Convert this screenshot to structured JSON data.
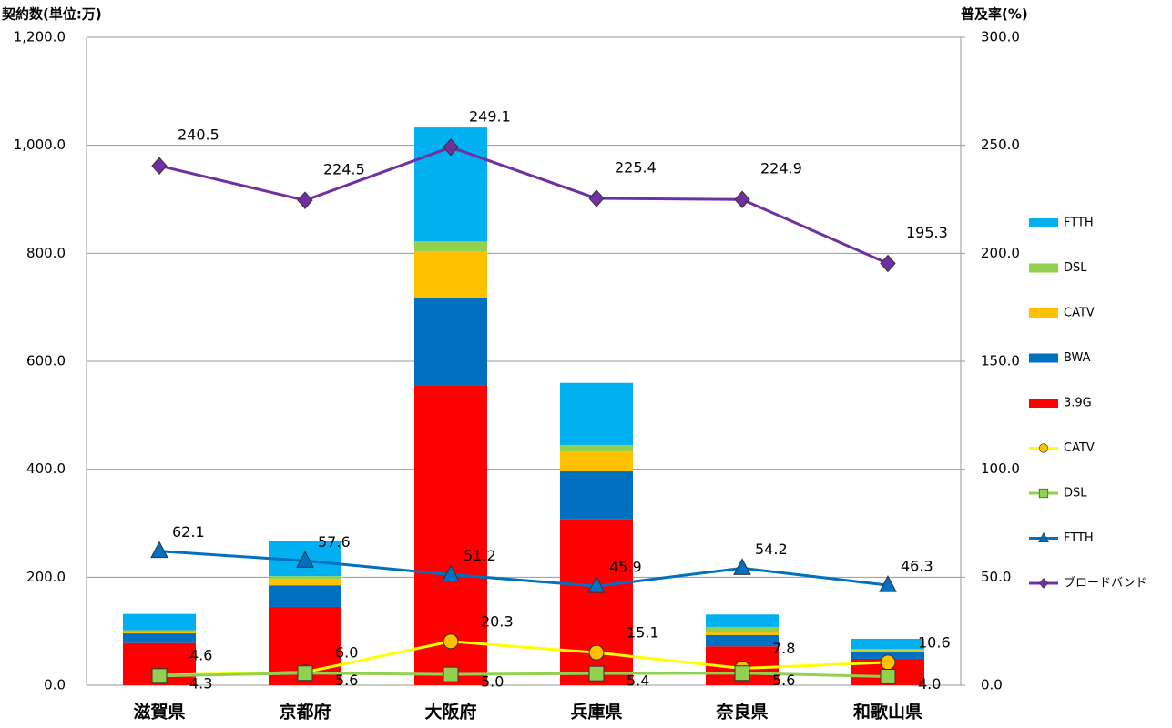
{
  "chart_data": {
    "type": "bar",
    "y_label": "契約数(単位:万)",
    "y2_label": "普及率(%)",
    "categories": [
      "滋賀県",
      "京都府",
      "大阪府",
      "兵庫県",
      "奈良県",
      "和歌山県"
    ],
    "ylim": [
      0,
      1200
    ],
    "yticks": [
      {
        "value": 0,
        "label": "0.0"
      },
      {
        "value": 200,
        "label": "200.0"
      },
      {
        "value": 400,
        "label": "400.0"
      },
      {
        "value": 600,
        "label": "600.0"
      },
      {
        "value": 800,
        "label": "800.0"
      },
      {
        "value": 1000,
        "label": "1,000.0"
      },
      {
        "value": 1200,
        "label": "1,200.0"
      }
    ],
    "y2lim": [
      0,
      300
    ],
    "y2ticks": [
      {
        "value": 0,
        "label": "0.0"
      },
      {
        "value": 50,
        "label": "50.0"
      },
      {
        "value": 100,
        "label": "100.0"
      },
      {
        "value": 150,
        "label": "150.0"
      },
      {
        "value": 200,
        "label": "200.0"
      },
      {
        "value": 250,
        "label": "250.0"
      },
      {
        "value": 300,
        "label": "300.0"
      }
    ],
    "grid": true,
    "legend": "right",
    "series": [
      {
        "name": "FTTH",
        "type": "bar",
        "color": "#00b0f0",
        "values": [
          30,
          66,
          211,
          115,
          23,
          19
        ]
      },
      {
        "name": "DSL",
        "type": "bar",
        "color": "#92d050",
        "values": [
          3,
          5,
          18,
          12,
          9,
          2
        ]
      },
      {
        "name": "CATV",
        "type": "bar",
        "color": "#ffc000",
        "values": [
          3,
          12,
          86,
          37,
          6,
          4
        ]
      },
      {
        "name": "BWA",
        "type": "bar",
        "color": "#0070c0",
        "values": [
          18,
          40,
          162,
          88,
          21,
          12
        ]
      },
      {
        "name": "3.9G",
        "type": "bar",
        "color": "#ff0000",
        "values": [
          78,
          145,
          556,
          308,
          72,
          49
        ]
      },
      {
        "name": "CATV",
        "type": "line",
        "axis": "y2",
        "color": "#ffff00",
        "marker": "circle",
        "marker_color": "#ffc000",
        "values": [
          4.6,
          6.0,
          20.3,
          15.1,
          7.8,
          10.6
        ],
        "value_labels": [
          "4.6",
          "6.0",
          "20.3",
          "15.1",
          "7.8",
          "10.6"
        ]
      },
      {
        "name": "DSL",
        "type": "line",
        "axis": "y2",
        "color": "#92d050",
        "marker": "square",
        "marker_color": "#92d050",
        "values": [
          4.3,
          5.6,
          5.0,
          5.4,
          5.6,
          4.0
        ],
        "value_labels": [
          "4.3",
          "5.6",
          "5.0",
          "5.4",
          "5.6",
          "4.0"
        ]
      },
      {
        "name": "FTTH",
        "type": "line",
        "axis": "y2",
        "color": "#0070c0",
        "marker": "triangle",
        "marker_color": "#0070c0",
        "values": [
          62.1,
          57.6,
          51.2,
          45.9,
          54.2,
          46.3
        ],
        "value_labels": [
          "62.1",
          "57.6",
          "51.2",
          "45.9",
          "54.2",
          "46.3"
        ]
      },
      {
        "name": "ブロードバンド",
        "type": "line",
        "axis": "y2",
        "color": "#7030a0",
        "marker": "diamond",
        "marker_color": "#7030a0",
        "values": [
          240.5,
          224.5,
          249.1,
          225.4,
          224.9,
          195.3
        ],
        "value_labels": [
          "240.5",
          "224.5",
          "249.1",
          "225.4",
          "224.9",
          "195.3"
        ]
      }
    ]
  }
}
